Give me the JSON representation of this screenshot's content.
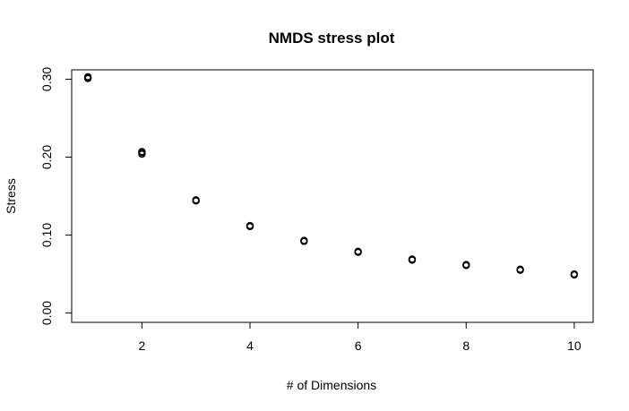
{
  "chart_data": {
    "type": "scatter",
    "title": "NMDS stress plot",
    "xlabel": "# of Dimensions",
    "ylabel": "Stress",
    "xlim": [
      0.7,
      10.35
    ],
    "ylim": [
      -0.012,
      0.312
    ],
    "xticks": [
      2,
      4,
      6,
      8,
      10
    ],
    "yticks": [
      0.0,
      0.1,
      0.2,
      0.3
    ],
    "ytick_labels": [
      "0.00",
      "0.10",
      "0.20",
      "0.30"
    ],
    "grid": false,
    "legend": "none",
    "marker": "open-circle",
    "color": "#000000",
    "points": [
      {
        "x": 1,
        "y": 0.301
      },
      {
        "x": 1,
        "y": 0.302
      },
      {
        "x": 1,
        "y": 0.303
      },
      {
        "x": 2,
        "y": 0.204
      },
      {
        "x": 2,
        "y": 0.206
      },
      {
        "x": 2,
        "y": 0.207
      },
      {
        "x": 3,
        "y": 0.144
      },
      {
        "x": 3,
        "y": 0.145
      },
      {
        "x": 4,
        "y": 0.111
      },
      {
        "x": 4,
        "y": 0.112
      },
      {
        "x": 5,
        "y": 0.092
      },
      {
        "x": 5,
        "y": 0.093
      },
      {
        "x": 6,
        "y": 0.078
      },
      {
        "x": 6,
        "y": 0.079
      },
      {
        "x": 7,
        "y": 0.068
      },
      {
        "x": 7,
        "y": 0.069
      },
      {
        "x": 8,
        "y": 0.061
      },
      {
        "x": 8,
        "y": 0.062
      },
      {
        "x": 9,
        "y": 0.055
      },
      {
        "x": 9,
        "y": 0.056
      },
      {
        "x": 10,
        "y": 0.049
      },
      {
        "x": 10,
        "y": 0.05
      }
    ]
  }
}
